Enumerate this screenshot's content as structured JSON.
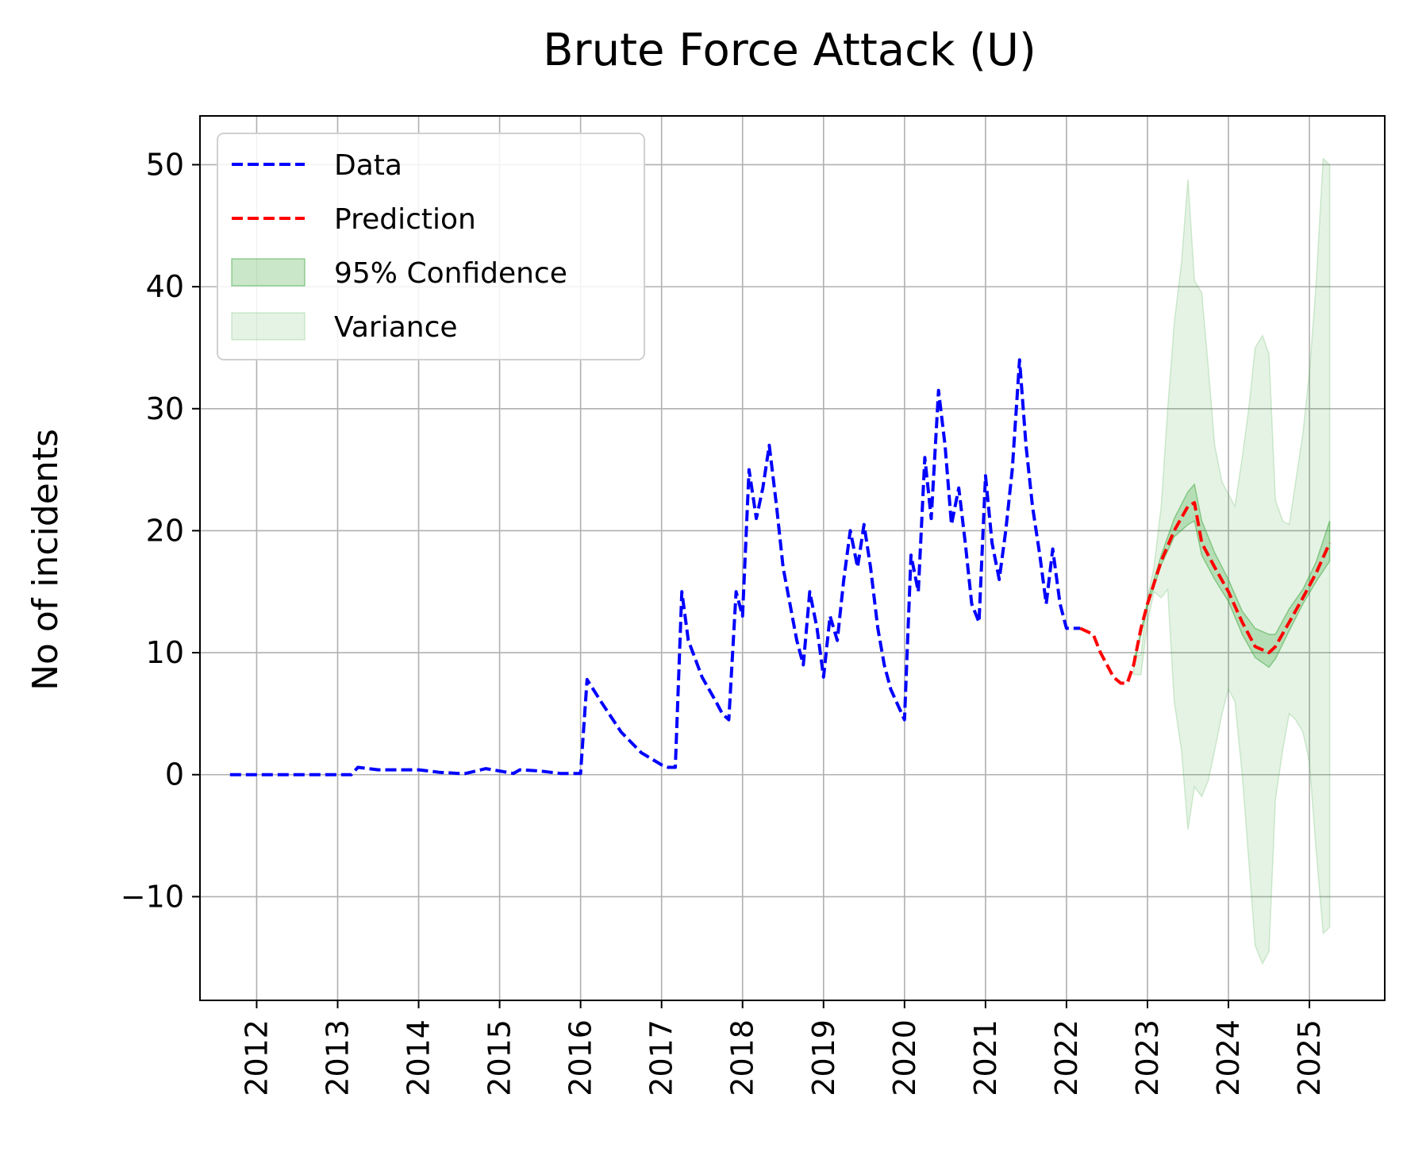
{
  "chart_data": {
    "type": "line",
    "title": "Brute Force Attack (U)",
    "xlabel": "",
    "ylabel": "No of incidents",
    "xlim": [
      2011.3,
      2025.93
    ],
    "ylim": [
      -18.5,
      54
    ],
    "x_ticks": [
      2012,
      2013,
      2014,
      2015,
      2016,
      2017,
      2018,
      2019,
      2020,
      2021,
      2022,
      2023,
      2024,
      2025
    ],
    "y_ticks": [
      -10,
      0,
      10,
      20,
      30,
      40,
      50
    ],
    "y_tick_labels": [
      "−10",
      "0",
      "10",
      "20",
      "30",
      "40",
      "50"
    ],
    "grid": true,
    "legend_position": "top-left",
    "legend": [
      "Data",
      "Prediction",
      "95% Confidence",
      "Variance"
    ],
    "colors": {
      "data": "#0000ff",
      "prediction": "#ff0000",
      "confidence": "#2ca02c",
      "variance": "#2ca02c"
    },
    "series": [
      {
        "name": "Data",
        "style": "dashed",
        "x": [
          2011.67,
          2012.0,
          2012.5,
          2013.0,
          2013.17,
          2013.25,
          2013.5,
          2013.75,
          2013.92,
          2014.0,
          2014.25,
          2014.5,
          2014.58,
          2014.83,
          2015.0,
          2015.17,
          2015.25,
          2015.5,
          2015.75,
          2016.0,
          2016.08,
          2016.25,
          2016.5,
          2016.75,
          2017.0,
          2017.08,
          2017.17,
          2017.25,
          2017.33,
          2017.5,
          2017.67,
          2017.75,
          2017.83,
          2017.92,
          2018.0,
          2018.08,
          2018.17,
          2018.25,
          2018.33,
          2018.42,
          2018.5,
          2018.67,
          2018.75,
          2018.83,
          2018.92,
          2019.0,
          2019.08,
          2019.17,
          2019.25,
          2019.33,
          2019.42,
          2019.5,
          2019.58,
          2019.67,
          2019.75,
          2019.83,
          2020.0,
          2020.08,
          2020.17,
          2020.25,
          2020.33,
          2020.42,
          2020.5,
          2020.58,
          2020.67,
          2020.75,
          2020.83,
          2020.92,
          2021.0,
          2021.08,
          2021.17,
          2021.25,
          2021.33,
          2021.42,
          2021.5,
          2021.58,
          2021.67,
          2021.75,
          2021.83,
          2021.92,
          2022.0,
          2022.08,
          2022.17
        ],
        "y": [
          0,
          0,
          0,
          0,
          0,
          0.6,
          0.4,
          0.4,
          0.4,
          0.4,
          0.2,
          0.1,
          0.1,
          0.5,
          0.3,
          0.1,
          0.4,
          0.3,
          0.1,
          0.1,
          7.8,
          6,
          3.5,
          1.8,
          0.8,
          0.6,
          0.6,
          15,
          11,
          8,
          6,
          5,
          4.5,
          15,
          13,
          25,
          21,
          23.5,
          27,
          22,
          17,
          11,
          9,
          15,
          12,
          8,
          13,
          11,
          16,
          20,
          17,
          20.5,
          17,
          12,
          9,
          7,
          4.5,
          18,
          15,
          26,
          21,
          31.5,
          27,
          20.5,
          23.5,
          19,
          14,
          12.5,
          24.5,
          19,
          16,
          20,
          25,
          34,
          27,
          22,
          18,
          14,
          18.5,
          14,
          12,
          12,
          12
        ]
      },
      {
        "name": "Prediction",
        "style": "dashed",
        "x": [
          2022.17,
          2022.33,
          2022.42,
          2022.5,
          2022.58,
          2022.67,
          2022.75,
          2022.83,
          2022.92,
          2023.0,
          2023.17,
          2023.33,
          2023.5,
          2023.58,
          2023.67,
          2023.83,
          2024.0,
          2024.17,
          2024.33,
          2024.5,
          2024.58,
          2024.75,
          2024.92,
          2025.08,
          2025.25
        ],
        "y": [
          12,
          11.5,
          10,
          9,
          8,
          7.5,
          7.5,
          9,
          12,
          14,
          17.5,
          20,
          22,
          22.3,
          19,
          17,
          15,
          12.5,
          10.5,
          10,
          10.5,
          12.5,
          14.5,
          16.5,
          19
        ]
      },
      {
        "name": "95% Confidence",
        "style": "band",
        "x": [
          2022.83,
          2023.0,
          2023.17,
          2023.33,
          2023.5,
          2023.58,
          2023.67,
          2023.83,
          2024.0,
          2024.17,
          2024.33,
          2024.5,
          2024.58,
          2024.75,
          2024.92,
          2025.08,
          2025.25
        ],
        "lower": [
          8.8,
          13.8,
          17.2,
          19.5,
          20.5,
          20.8,
          18,
          16,
          14.2,
          11.5,
          9.6,
          8.8,
          9.5,
          11.8,
          14,
          15.8,
          17.5
        ],
        "upper": [
          9.2,
          14.2,
          18,
          21,
          23.2,
          23.8,
          20.8,
          18.2,
          16,
          13.4,
          12,
          11.5,
          11.5,
          13.6,
          15.2,
          17.4,
          20.8
        ]
      },
      {
        "name": "Variance",
        "style": "band",
        "x": [
          2022.83,
          2022.92,
          2023.0,
          2023.08,
          2023.17,
          2023.25,
          2023.33,
          2023.42,
          2023.5,
          2023.58,
          2023.67,
          2023.75,
          2023.83,
          2023.92,
          2024.0,
          2024.08,
          2024.17,
          2024.25,
          2024.33,
          2024.42,
          2024.5,
          2024.58,
          2024.67,
          2024.75,
          2024.83,
          2024.92,
          2025.0,
          2025.08,
          2025.17,
          2025.25
        ],
        "lower": [
          8.2,
          8.2,
          12.5,
          15,
          14.5,
          15.2,
          6,
          2,
          -4.5,
          -1,
          -1.8,
          -0.5,
          2,
          5,
          7,
          6,
          0,
          -7,
          -14,
          -15.5,
          -14.5,
          -2,
          2,
          5,
          4.5,
          3.5,
          1,
          -6,
          -13,
          -12.5
        ],
        "upper": [
          9.8,
          9.8,
          14.5,
          17,
          22,
          30,
          37,
          42,
          48.8,
          40.5,
          39.5,
          33.5,
          27,
          24,
          23,
          22,
          26,
          30,
          35,
          36,
          34.5,
          22.5,
          20.8,
          20.5,
          24,
          28,
          33,
          40,
          50.5,
          50
        ]
      }
    ]
  }
}
